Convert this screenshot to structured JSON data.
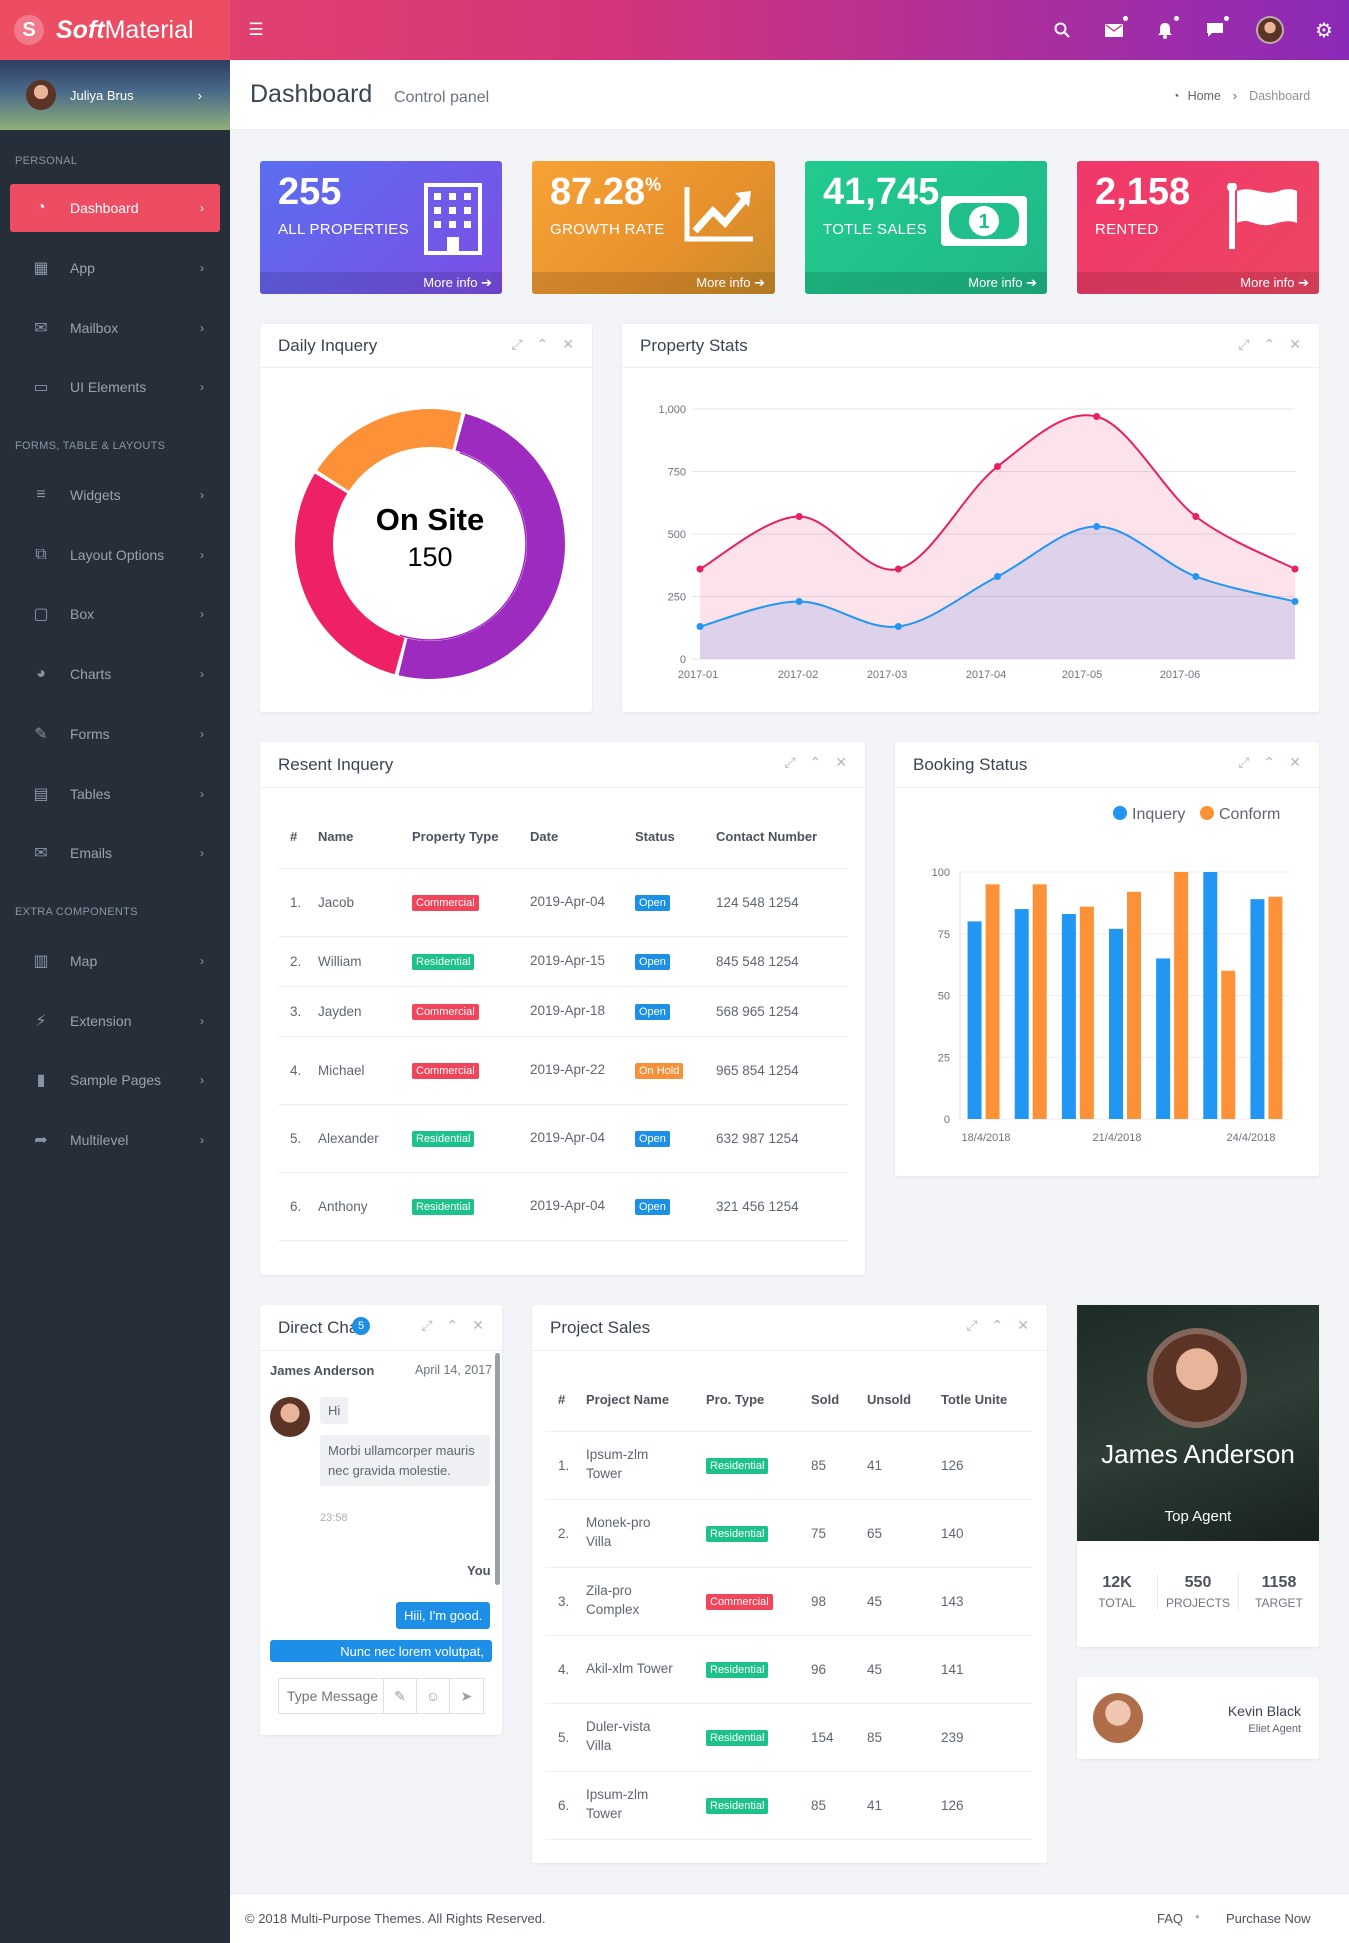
{
  "brand": {
    "bold": "Soft",
    "normal": "Material"
  },
  "header": {
    "icons": [
      "menu-icon",
      "search-icon",
      "mail-icon",
      "bell-icon",
      "chat-icon",
      "avatar",
      "gear-icon"
    ]
  },
  "user": {
    "name": "Juliya Brus"
  },
  "sidebar": {
    "sections": [
      "PERSONAL",
      "FORMS, TABLE & LAYOUTS",
      "EXTRA COMPONENTS"
    ],
    "items": [
      {
        "label": "Dashboard",
        "icon": "dashboard-icon"
      },
      {
        "label": "App",
        "icon": "grid-icon"
      },
      {
        "label": "Mailbox",
        "icon": "envelope-icon"
      },
      {
        "label": "UI Elements",
        "icon": "laptop-icon"
      },
      {
        "label": "Widgets",
        "icon": "list-icon"
      },
      {
        "label": "Layout Options",
        "icon": "copy-icon"
      },
      {
        "label": "Box",
        "icon": "square-icon"
      },
      {
        "label": "Charts",
        "icon": "pie-chart-icon"
      },
      {
        "label": "Forms",
        "icon": "edit-icon"
      },
      {
        "label": "Tables",
        "icon": "table-icon"
      },
      {
        "label": "Emails",
        "icon": "envelope-open-icon"
      },
      {
        "label": "Map",
        "icon": "map-icon"
      },
      {
        "label": "Extension",
        "icon": "plug-icon"
      },
      {
        "label": "Sample Pages",
        "icon": "file-icon"
      },
      {
        "label": "Multilevel",
        "icon": "share-icon"
      }
    ]
  },
  "page": {
    "title": "Dashboard",
    "subtitle": "Control panel",
    "breadcrumb": {
      "home": "Home",
      "current": "Dashboard"
    }
  },
  "stats": [
    {
      "value": "255",
      "suffix": "",
      "label": "ALL PROPERTIES",
      "more": "More info",
      "icon": "building-icon",
      "color": "#6f53ea"
    },
    {
      "value": "87.28",
      "suffix": "%",
      "label": "GROWTH RATE",
      "more": "More info",
      "icon": "trend-up-icon",
      "color": "#f39a37"
    },
    {
      "value": "41,745",
      "suffix": "",
      "label": "TOTLE SALES",
      "more": "More info",
      "icon": "money-icon",
      "color": "#23c68c"
    },
    {
      "value": "2,158",
      "suffix": "",
      "label": "RENTED",
      "more": "More info",
      "icon": "flag-icon",
      "color": "#ee3d6e"
    }
  ],
  "daily": {
    "title": "Daily Inquery",
    "center_title": "On Site",
    "center_value": "150"
  },
  "property_stats": {
    "title": "Property Stats"
  },
  "recent": {
    "title": "Resent Inquery",
    "columns": [
      "#",
      "Name",
      "Property Type",
      "Date",
      "Status",
      "Contact Number"
    ],
    "rows": [
      {
        "n": "1.",
        "name": "Jacob",
        "type": "Commercial",
        "date": "2019-Apr-04",
        "status": "Open",
        "contact": "124 548 1254"
      },
      {
        "n": "2.",
        "name": "William",
        "type": "Residential",
        "date": "2019-Apr-15",
        "status": "Open",
        "contact": "845 548 1254"
      },
      {
        "n": "3.",
        "name": "Jayden",
        "type": "Commercial",
        "date": "2019-Apr-18",
        "status": "Open",
        "contact": "568 965 1254"
      },
      {
        "n": "4.",
        "name": "Michael",
        "type": "Commercial",
        "date": "2019-Apr-22",
        "status": "On Hold",
        "contact": "965 854 1254"
      },
      {
        "n": "5.",
        "name": "Alexander",
        "type": "Residential",
        "date": "2019-Apr-04",
        "status": "Open",
        "contact": "632 987 1254"
      },
      {
        "n": "6.",
        "name": "Anthony",
        "type": "Residential",
        "date": "2019-Apr-04",
        "status": "Open",
        "contact": "321 456 1254"
      }
    ]
  },
  "booking": {
    "title": "Booking Status"
  },
  "chat": {
    "title": "Direct Chat",
    "badge": "5",
    "sender": "James Anderson",
    "date": "April 14, 2017",
    "msg1": "Hi",
    "msg2": "Morbi ullamcorper mauris nec gravida molestie.",
    "time": "23:58",
    "you": "You",
    "reply1": "Hiii, I'm good.",
    "reply2": "Nunc nec lorem volutpat,",
    "placeholder": "Type Message"
  },
  "project": {
    "title": "Project Sales",
    "columns": [
      "#",
      "Project Name",
      "Pro. Type",
      "Sold",
      "Unsold",
      "Totle Unite"
    ],
    "rows": [
      {
        "n": "1.",
        "name": "Ipsum-zlm Tower",
        "type": "Residential",
        "sold": "85",
        "unsold": "41",
        "total": "126"
      },
      {
        "n": "2.",
        "name": "Monek-pro Villa",
        "type": "Residential",
        "sold": "75",
        "unsold": "65",
        "total": "140"
      },
      {
        "n": "3.",
        "name": "Zila-pro Complex",
        "type": "Commercial",
        "sold": "98",
        "unsold": "45",
        "total": "143"
      },
      {
        "n": "4.",
        "name": "Akil-xlm Tower",
        "type": "Residential",
        "sold": "96",
        "unsold": "45",
        "total": "141"
      },
      {
        "n": "5.",
        "name": "Duler-vista Villa",
        "type": "Residential",
        "sold": "154",
        "unsold": "85",
        "total": "239"
      },
      {
        "n": "6.",
        "name": "Ipsum-zlm Tower",
        "type": "Residential",
        "sold": "85",
        "unsold": "41",
        "total": "126"
      }
    ]
  },
  "agent": {
    "name": "James Anderson",
    "role": "Top Agent",
    "stats": [
      {
        "v": "12K",
        "l": "TOTAL"
      },
      {
        "v": "550",
        "l": "PROJECTS"
      },
      {
        "v": "1158",
        "l": "TARGET"
      }
    ]
  },
  "agent2": {
    "name": "Kevin Black",
    "role": "Eliet Agent"
  },
  "footer": {
    "copyright": "© 2018 Multi-Purpose Themes. All Rights Reserved.",
    "faq": "FAQ",
    "purchase": "Purchase Now"
  },
  "chart_data": [
    {
      "type": "pie",
      "title": "",
      "slices": [
        {
          "value": 50,
          "color": "#9d2bc0"
        },
        {
          "value": 30,
          "color": "#ee2166"
        },
        {
          "value": 20,
          "color": "#fc9138"
        }
      ]
    },
    {
      "type": "area",
      "categories": [
        "2017-01",
        "2017-02",
        "2017-03",
        "2017-04",
        "2017-05",
        "2017-06"
      ],
      "x": [
        0,
        1,
        2,
        3,
        4,
        5,
        6
      ],
      "ylim": [
        0,
        1000
      ],
      "yticks": [
        "0",
        "250",
        "500",
        "750",
        "1,000"
      ],
      "series": [
        {
          "values": [
            360,
            570,
            360,
            770,
            970,
            570,
            360
          ],
          "color": "#e91e63"
        },
        {
          "values": [
            130,
            230,
            130,
            330,
            530,
            330,
            230
          ],
          "color": "#2196f3"
        }
      ]
    },
    {
      "type": "bar",
      "xticks": [
        "18/4/2018",
        "21/4/2018",
        "24/4/2018"
      ],
      "ylim": [
        0,
        100
      ],
      "yticks": [
        "0",
        "25",
        "50",
        "75",
        "100"
      ],
      "series": [
        {
          "name": "Inquery",
          "color": "#2196f3",
          "values": [
            80,
            85,
            83,
            77,
            65,
            100,
            89
          ]
        },
        {
          "name": "Conform",
          "color": "#fc9138",
          "values": [
            95,
            95,
            86,
            92,
            100,
            60,
            90
          ]
        }
      ]
    }
  ]
}
